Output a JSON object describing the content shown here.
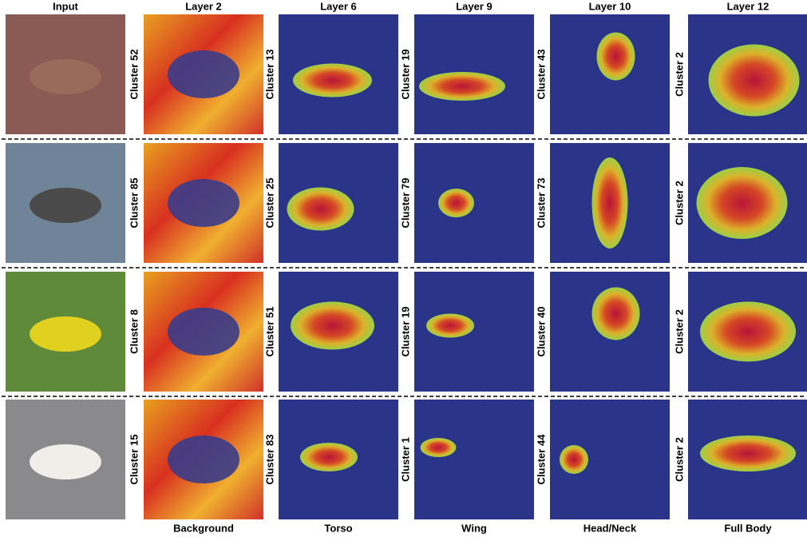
{
  "columns": [
    "Input",
    "Layer 2",
    "Layer 6",
    "Layer 9",
    "Layer 10",
    "Layer 12"
  ],
  "rows": [
    {
      "clusters": [
        "Cluster 52",
        "Cluster 13",
        "Cluster 19",
        "Cluster 43",
        "Cluster 2"
      ]
    },
    {
      "clusters": [
        "Cluster 85",
        "Cluster 25",
        "Cluster 79",
        "Cluster 73",
        "Cluster 2"
      ]
    },
    {
      "clusters": [
        "Cluster 8",
        "Cluster 51",
        "Cluster 19",
        "Cluster 40",
        "Cluster 2"
      ]
    },
    {
      "clusters": [
        "Cluster 15",
        "Cluster 83",
        "Cluster 1",
        "Cluster 44",
        "Cluster 2"
      ]
    }
  ],
  "footer": [
    "Background",
    "Torso",
    "Wing",
    "Head/Neck",
    "Full Body"
  ]
}
